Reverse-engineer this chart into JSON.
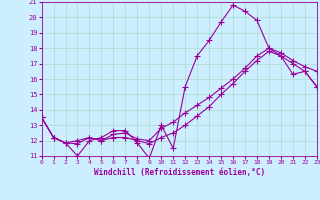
{
  "xlabel": "Windchill (Refroidissement éolien,°C)",
  "xlim": [
    0,
    23
  ],
  "ylim": [
    11,
    21
  ],
  "yticks": [
    11,
    12,
    13,
    14,
    15,
    16,
    17,
    18,
    19,
    20,
    21
  ],
  "xticks": [
    0,
    1,
    2,
    3,
    4,
    5,
    6,
    7,
    8,
    9,
    10,
    11,
    12,
    13,
    14,
    15,
    16,
    17,
    18,
    19,
    20,
    21,
    22,
    23
  ],
  "line_color": "#990099",
  "bg_color": "#cceeff",
  "grid_color": "#aaddcc",
  "line1_x": [
    0,
    1,
    2,
    3,
    4,
    5,
    6,
    7,
    8,
    9,
    10,
    11,
    12,
    13,
    14,
    15,
    16,
    17,
    18,
    19,
    20,
    21,
    22,
    23
  ],
  "line1_y": [
    13.5,
    12.2,
    11.85,
    11.0,
    12.0,
    12.2,
    12.65,
    12.65,
    11.85,
    10.85,
    13.0,
    11.5,
    15.5,
    17.5,
    18.5,
    19.7,
    20.8,
    20.4,
    19.8,
    18.0,
    17.5,
    16.3,
    16.5,
    15.5
  ],
  "line2_x": [
    0,
    1,
    2,
    3,
    4,
    5,
    6,
    7,
    8,
    9,
    10,
    11,
    12,
    13,
    14,
    15,
    16,
    17,
    18,
    19,
    20,
    21,
    22,
    23
  ],
  "line2_y": [
    13.5,
    12.2,
    11.85,
    12.0,
    12.2,
    12.0,
    12.2,
    12.2,
    12.0,
    11.8,
    12.2,
    12.5,
    13.0,
    13.6,
    14.2,
    15.0,
    15.7,
    16.5,
    17.2,
    17.8,
    17.5,
    17.0,
    16.5,
    15.5
  ],
  "line3_x": [
    0,
    1,
    2,
    3,
    4,
    5,
    6,
    7,
    8,
    9,
    10,
    11,
    12,
    13,
    14,
    15,
    16,
    17,
    18,
    19,
    20,
    21,
    22,
    23
  ],
  "line3_y": [
    13.5,
    12.2,
    11.85,
    11.8,
    12.2,
    12.0,
    12.4,
    12.5,
    12.1,
    12.0,
    12.8,
    13.2,
    13.8,
    14.3,
    14.8,
    15.4,
    16.0,
    16.7,
    17.5,
    18.0,
    17.7,
    17.2,
    16.8,
    16.5
  ]
}
